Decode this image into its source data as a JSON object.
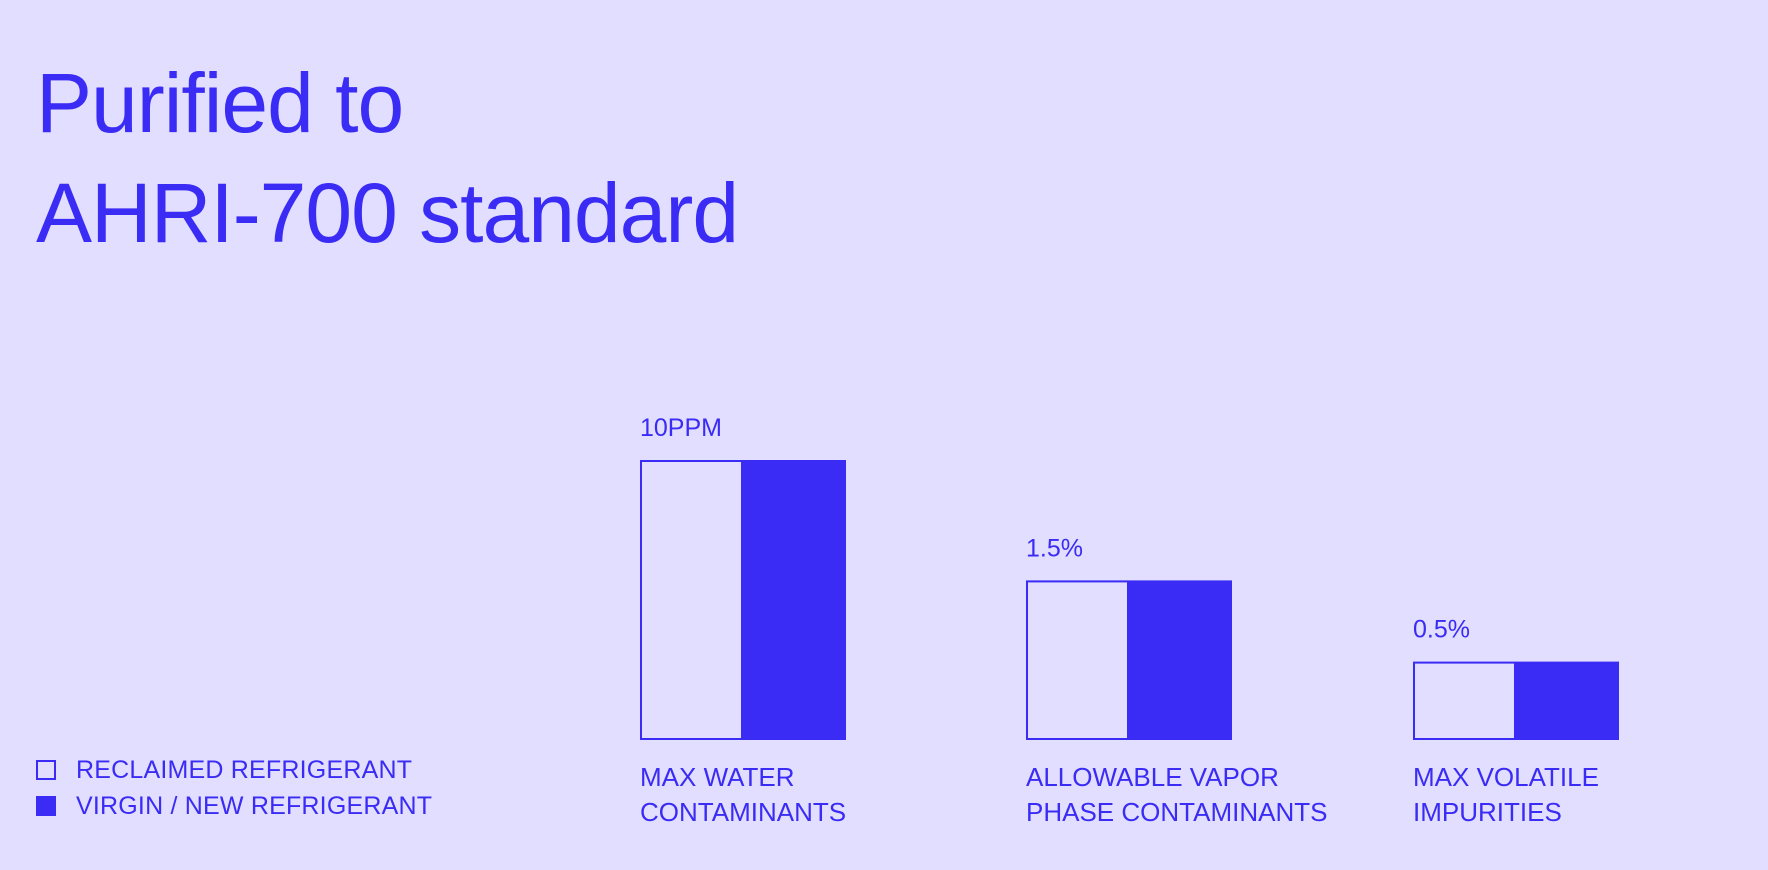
{
  "title_lines": [
    "Purified to",
    "AHRI-700 standard"
  ],
  "legend": [
    {
      "label": "RECLAIMED REFRIGERANT",
      "style": "outline"
    },
    {
      "label": "VIRGIN / NEW REFRIGERANT",
      "style": "filled"
    }
  ],
  "colors": {
    "background": "#E1DEFF",
    "accent": "#3A2BF5"
  },
  "chart_data": {
    "type": "bar",
    "title": "Purified to AHRI-700 standard",
    "categories": [
      {
        "lines": [
          "MAX WATER",
          "CONTAMINANTS"
        ]
      },
      {
        "lines": [
          "ALLOWABLE VAPOR",
          "PHASE CONTAMINANTS"
        ]
      },
      {
        "lines": [
          "MAX VOLATILE",
          "IMPURITIES"
        ]
      }
    ],
    "value_labels": [
      "10PPM",
      "1.5%",
      "0.5%"
    ],
    "relative_heights": [
      1.0,
      0.57,
      0.28
    ],
    "series": [
      {
        "name": "RECLAIMED REFRIGERANT",
        "style": "outline",
        "values": [
          1.0,
          0.57,
          0.28
        ]
      },
      {
        "name": "VIRGIN / NEW REFRIGERANT",
        "style": "filled",
        "values": [
          1.0,
          0.57,
          0.28
        ]
      }
    ],
    "legend_position": "bottom-left",
    "grid": false
  }
}
